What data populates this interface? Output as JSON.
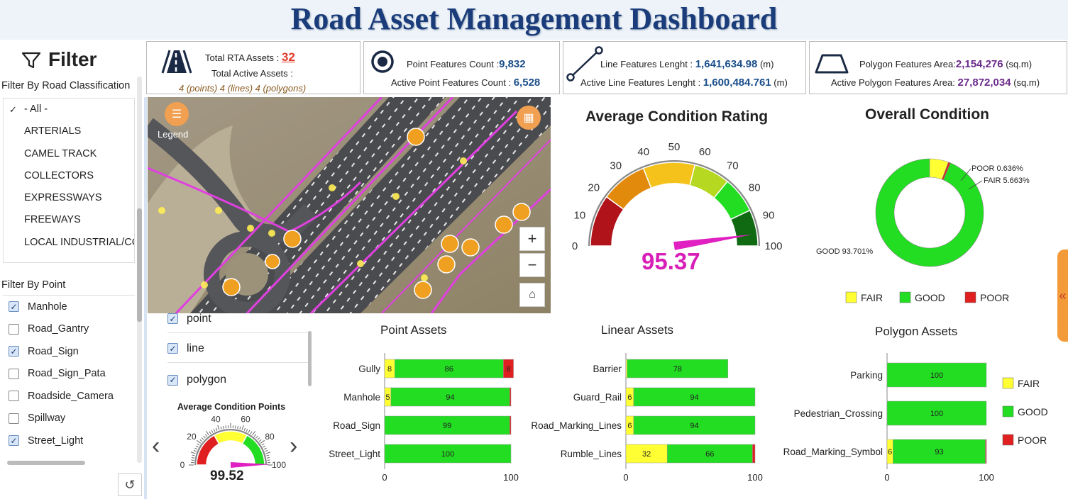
{
  "title": "Road Asset Management Dashboard",
  "sidebar": {
    "filter_label": "Filter",
    "road_class_label": "Filter By Road Classification",
    "road_classes": [
      "- All -",
      "ARTERIALS",
      "CAMEL TRACK",
      "COLLECTORS",
      "EXPRESSWAYS",
      "FREEWAYS",
      "LOCAL INDUSTRIAL/CC"
    ],
    "point_label": "Filter By Point",
    "points": [
      {
        "label": "Manhole",
        "checked": true
      },
      {
        "label": "Road_Gantry",
        "checked": false
      },
      {
        "label": "Road_Sign",
        "checked": true
      },
      {
        "label": "Road_Sign_Pata",
        "checked": false
      },
      {
        "label": "Roadside_Camera",
        "checked": false
      },
      {
        "label": "Spillway",
        "checked": false
      },
      {
        "label": "Street_Light",
        "checked": true
      }
    ]
  },
  "kpis": {
    "rta_label": "Total RTA Assets :",
    "rta_value": "32",
    "active_label": "Total Active Assets :",
    "active_value": "4 (points) 4 (lines) 4 (polygons)",
    "point_label": "Point Features Count :",
    "point_value": "9,832",
    "active_point_label": "Active Point Features Count :",
    "active_point_value": "6,528",
    "line_label": "Line Features Lenght :",
    "line_value": "1,641,634.98",
    "line_unit": "(m)",
    "active_line_label": "Active Line Features Lenght :",
    "active_line_value": "1,600,484.761",
    "active_line_unit": "(m)",
    "poly_label": "Polygon Features Area:",
    "poly_value": "2,154,276",
    "poly_unit": "(sq.m)",
    "active_poly_label": "Active Polygon Features Area:",
    "active_poly_value": "27,872,034",
    "active_poly_unit": "(sq.m)"
  },
  "map": {
    "legend_label": "Legend",
    "zoom_in": "+",
    "zoom_out": "−"
  },
  "layers": [
    {
      "label": "point",
      "checked": true
    },
    {
      "label": "line",
      "checked": true
    },
    {
      "label": "polygon",
      "checked": true
    }
  ],
  "colors": {
    "fair": "#ffff33",
    "good": "#22dd22",
    "poor": "#e02020",
    "accent": "#e020c0",
    "title": "#1b3c7a"
  },
  "chart_data": [
    {
      "type": "gauge",
      "title": "Average Condition Rating",
      "value": 95.37,
      "value_label": "95.37",
      "range": [
        0,
        100
      ],
      "ticks": [
        "0",
        "10",
        "20",
        "30",
        "40",
        "50",
        "60",
        "70",
        "80",
        "90",
        "100"
      ]
    },
    {
      "type": "pie",
      "title": "Overall Condition",
      "slices": [
        {
          "name": "GOOD",
          "value": 93.701,
          "label": "GOOD 93.701%"
        },
        {
          "name": "FAIR",
          "value": 5.663,
          "label": "FAIR 5.663%"
        },
        {
          "name": "POOR",
          "value": 0.636,
          "label": "POOR 0.636%"
        }
      ],
      "legend": [
        "FAIR",
        "GOOD",
        "POOR"
      ]
    },
    {
      "type": "bar",
      "title": "Point Assets",
      "categories": [
        "Gully",
        "Manhole",
        "Road_Sign",
        "Street_Light"
      ],
      "series": [
        {
          "name": "FAIR",
          "values": [
            8,
            5,
            0,
            0
          ]
        },
        {
          "name": "GOOD",
          "values": [
            86,
            94,
            99,
            100
          ]
        },
        {
          "name": "POOR",
          "values": [
            8,
            1,
            1,
            0
          ]
        }
      ],
      "xlim": [
        0,
        100
      ],
      "xticks": [
        "0",
        "100"
      ]
    },
    {
      "type": "bar",
      "title": "Linear Assets",
      "categories": [
        "Barrier",
        "Guard_Rail",
        "Road_Marking_Lines",
        "Rumble_Lines"
      ],
      "series": [
        {
          "name": "FAIR",
          "values": [
            1,
            6,
            6,
            32
          ]
        },
        {
          "name": "GOOD",
          "values": [
            78,
            94,
            94,
            66
          ]
        },
        {
          "name": "POOR",
          "values": [
            0,
            0,
            0,
            2
          ]
        }
      ],
      "xlim": [
        0,
        100
      ],
      "xticks": [
        "0",
        "100"
      ]
    },
    {
      "type": "bar",
      "title": "Polygon Assets",
      "categories": [
        "Parking",
        "Pedestrian_Crossing",
        "Road_Marking_Symbol"
      ],
      "series": [
        {
          "name": "FAIR",
          "values": [
            0,
            0,
            6
          ]
        },
        {
          "name": "GOOD",
          "values": [
            100,
            100,
            93
          ]
        },
        {
          "name": "POOR",
          "values": [
            0,
            0,
            1
          ]
        }
      ],
      "xlim": [
        0,
        100
      ],
      "xticks": [
        "0",
        "100"
      ],
      "legend": [
        "FAIR",
        "GOOD",
        "POOR"
      ]
    },
    {
      "type": "gauge",
      "title": "Average Condition Points",
      "value": 99.52,
      "value_label": "99.52",
      "range": [
        0,
        100
      ],
      "ticks": [
        "0",
        "20",
        "40",
        "60",
        "80",
        "100"
      ]
    }
  ]
}
